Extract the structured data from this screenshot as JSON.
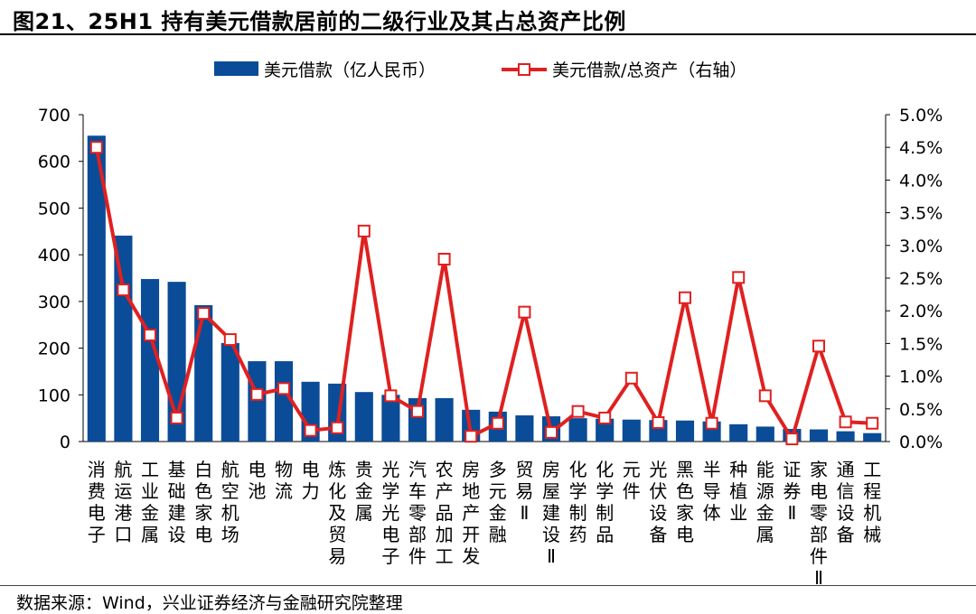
{
  "title": "图21、25H1 持有美元借款居前的二级行业及其占总资产比例",
  "source": "数据来源：Wind，兴业证券经济与金融研究院整理",
  "chart_data": {
    "type": "bar+line",
    "categories": [
      "消费电子",
      "航运港口",
      "工业金属",
      "基础建设",
      "白色家电",
      "航空机场",
      "电池",
      "物流",
      "电力",
      "炼化及贸易",
      "贵金属",
      "光学光电子",
      "汽车零部件",
      "农产品加工",
      "房地产开发",
      "多元金融",
      "贸易Ⅱ",
      "房屋建设Ⅱ",
      "化学制药",
      "化学制品",
      "元件",
      "光伏设备",
      "黑色家电",
      "半导体",
      "种植业",
      "能源金属",
      "证券Ⅱ",
      "家电零部件Ⅱ",
      "通信设备",
      "工程机械"
    ],
    "series": [
      {
        "name": "美元借款（亿人民币）",
        "type": "bar",
        "axis": "left",
        "color": "#0a4c97",
        "values": [
          655,
          441,
          348,
          342,
          292,
          211,
          172,
          172,
          128,
          124,
          106,
          100,
          93,
          93,
          68,
          64,
          56,
          54,
          50,
          49,
          47,
          46,
          45,
          43,
          37,
          32,
          27,
          26,
          22,
          18
        ]
      },
      {
        "name": "美元借款/总资产（右轴）",
        "type": "line",
        "axis": "right",
        "color": "#e02020",
        "unit": "%",
        "values": [
          4.5,
          2.32,
          1.63,
          0.36,
          1.96,
          1.56,
          0.72,
          0.81,
          0.17,
          0.21,
          3.22,
          0.7,
          0.46,
          2.79,
          0.08,
          0.28,
          1.98,
          0.14,
          0.46,
          0.36,
          0.97,
          0.29,
          2.2,
          0.28,
          2.51,
          0.7,
          0.04,
          1.46,
          0.3,
          0.28
        ]
      }
    ],
    "yleft": {
      "range": [
        0,
        700
      ],
      "ticks": [
        "0",
        "100",
        "200",
        "300",
        "400",
        "500",
        "600",
        "700"
      ]
    },
    "yright": {
      "range": [
        0,
        5
      ],
      "ticks": [
        "0.0%",
        "0.5%",
        "1.0%",
        "1.5%",
        "2.0%",
        "2.5%",
        "3.0%",
        "3.5%",
        "4.0%",
        "4.5%",
        "5.0%"
      ]
    },
    "legend_placement": "top-center",
    "grid": false
  }
}
